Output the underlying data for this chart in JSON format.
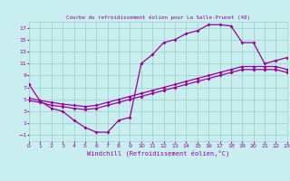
{
  "title": "Courbe du refroidissement éolien pour La Salle-Prunet (48)",
  "xlabel": "Windchill (Refroidissement éolien,°C)",
  "bg_color": "#c8eef0",
  "grid_color": "#a0d4c8",
  "line_color": "#990099",
  "xlim": [
    0,
    23
  ],
  "ylim": [
    -2,
    18
  ],
  "xticks": [
    0,
    1,
    2,
    3,
    4,
    5,
    6,
    7,
    8,
    9,
    10,
    11,
    12,
    13,
    14,
    15,
    16,
    17,
    18,
    19,
    20,
    21,
    22,
    23
  ],
  "yticks": [
    -1,
    1,
    3,
    5,
    7,
    9,
    11,
    13,
    15,
    17
  ],
  "line1_x": [
    0,
    1,
    2,
    3,
    4,
    5,
    6,
    7,
    8,
    9,
    10,
    11,
    12,
    13,
    14,
    15,
    16,
    17,
    18,
    19,
    20,
    21,
    22,
    23
  ],
  "line1_y": [
    7.5,
    4.7,
    3.5,
    3.0,
    1.5,
    0.3,
    -0.5,
    -0.5,
    1.5,
    2.0,
    11.0,
    12.5,
    14.5,
    15.0,
    16.0,
    16.5,
    17.5,
    17.5,
    17.3,
    14.5,
    14.5,
    11.0,
    11.5,
    12.0
  ],
  "line2_x": [
    0,
    1,
    2,
    3,
    4,
    5,
    6,
    7,
    8,
    9,
    10,
    11,
    12,
    13,
    14,
    15,
    16,
    17,
    18,
    19,
    20,
    21,
    22,
    23
  ],
  "line2_y": [
    5.2,
    4.8,
    4.5,
    4.2,
    4.0,
    3.8,
    4.0,
    4.5,
    5.0,
    5.5,
    6.0,
    6.5,
    7.0,
    7.5,
    8.0,
    8.5,
    9.0,
    9.5,
    10.0,
    10.5,
    10.5,
    10.5,
    10.5,
    10.0
  ],
  "line3_x": [
    0,
    1,
    2,
    3,
    4,
    5,
    6,
    7,
    8,
    9,
    10,
    11,
    12,
    13,
    14,
    15,
    16,
    17,
    18,
    19,
    20,
    21,
    22,
    23
  ],
  "line3_y": [
    4.8,
    4.5,
    4.0,
    3.8,
    3.5,
    3.3,
    3.5,
    4.0,
    4.5,
    5.0,
    5.5,
    6.0,
    6.5,
    7.0,
    7.5,
    8.0,
    8.5,
    9.0,
    9.5,
    10.0,
    10.0,
    10.0,
    10.0,
    9.5
  ]
}
